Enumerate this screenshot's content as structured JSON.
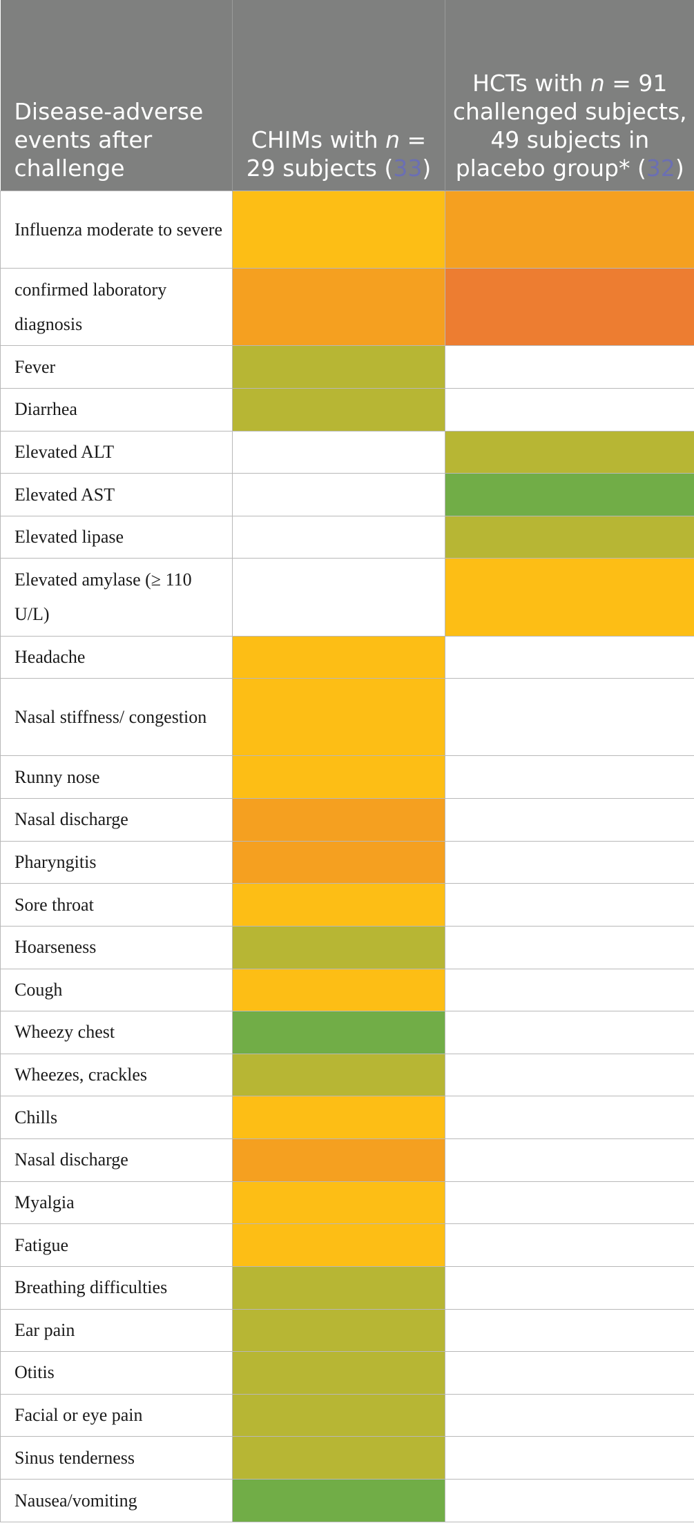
{
  "colors": {
    "moderate": "#fdbe15",
    "high": "#f5a020",
    "very_high": "#ed7d31",
    "low": "#b7b634",
    "very_low": "#71ad47",
    "none": "#ffffff"
  },
  "header": {
    "col1": "Disease-adverse events after challenge",
    "col2_prefix": "CHIMs with",
    "col2_n": "n",
    "col2_suffix": "= 29 subjects",
    "col2_ref_open": "(",
    "col2_ref": "33",
    "col2_ref_close": ")",
    "col3_prefix": "HCTs with",
    "col3_n": "n",
    "col3_suffix": "= 91 challenged subjects, 49 subjects in placebo group*",
    "col3_ref_open": "(",
    "col3_ref": "32",
    "col3_ref_close": ")"
  },
  "rows": [
    {
      "label": "Influenza moderate to severe",
      "chim": "moderate",
      "hct": "high",
      "tall": true
    },
    {
      "label": "confirmed laboratory diagnosis",
      "chim": "high",
      "hct": "very_high",
      "tall": true
    },
    {
      "label": "Fever",
      "chim": "low",
      "hct": "none"
    },
    {
      "label": "Diarrhea",
      "chim": "low",
      "hct": "none"
    },
    {
      "label": "Elevated ALT",
      "chim": "none",
      "hct": "low"
    },
    {
      "label": "Elevated AST",
      "chim": "none",
      "hct": "very_low"
    },
    {
      "label": "Elevated lipase",
      "chim": "none",
      "hct": "low"
    },
    {
      "label": "Elevated amylase (≥ 110 U/L)",
      "chim": "none",
      "hct": "moderate",
      "tall": true
    },
    {
      "label": "Headache",
      "chim": "moderate",
      "hct": "none"
    },
    {
      "label": "Nasal stiffness/ congestion",
      "chim": "moderate",
      "hct": "none",
      "tall": true
    },
    {
      "label": "Runny nose",
      "chim": "moderate",
      "hct": "none"
    },
    {
      "label": "Nasal discharge",
      "chim": "high",
      "hct": "none"
    },
    {
      "label": "Pharyngitis",
      "chim": "high",
      "hct": "none"
    },
    {
      "label": "Sore throat",
      "chim": "moderate",
      "hct": "none"
    },
    {
      "label": "Hoarseness",
      "chim": "low",
      "hct": "none"
    },
    {
      "label": "Cough",
      "chim": "moderate",
      "hct": "none"
    },
    {
      "label": "Wheezy chest",
      "chim": "very_low",
      "hct": "none"
    },
    {
      "label": "Wheezes, crackles",
      "chim": "low",
      "hct": "none"
    },
    {
      "label": "Chills",
      "chim": "moderate",
      "hct": "none"
    },
    {
      "label": "Nasal discharge",
      "chim": "high",
      "hct": "none"
    },
    {
      "label": "Myalgia",
      "chim": "moderate",
      "hct": "none"
    },
    {
      "label": "Fatigue",
      "chim": "moderate",
      "hct": "none"
    },
    {
      "label": "Breathing difficulties",
      "chim": "low",
      "hct": "none"
    },
    {
      "label": "Ear pain",
      "chim": "low",
      "hct": "none"
    },
    {
      "label": "Otitis",
      "chim": "low",
      "hct": "none"
    },
    {
      "label": "Facial or eye pain",
      "chim": "low",
      "hct": "none"
    },
    {
      "label": "Sinus tenderness",
      "chim": "low",
      "hct": "none"
    },
    {
      "label": "Nausea/vomiting",
      "chim": "very_low",
      "hct": "none"
    }
  ]
}
